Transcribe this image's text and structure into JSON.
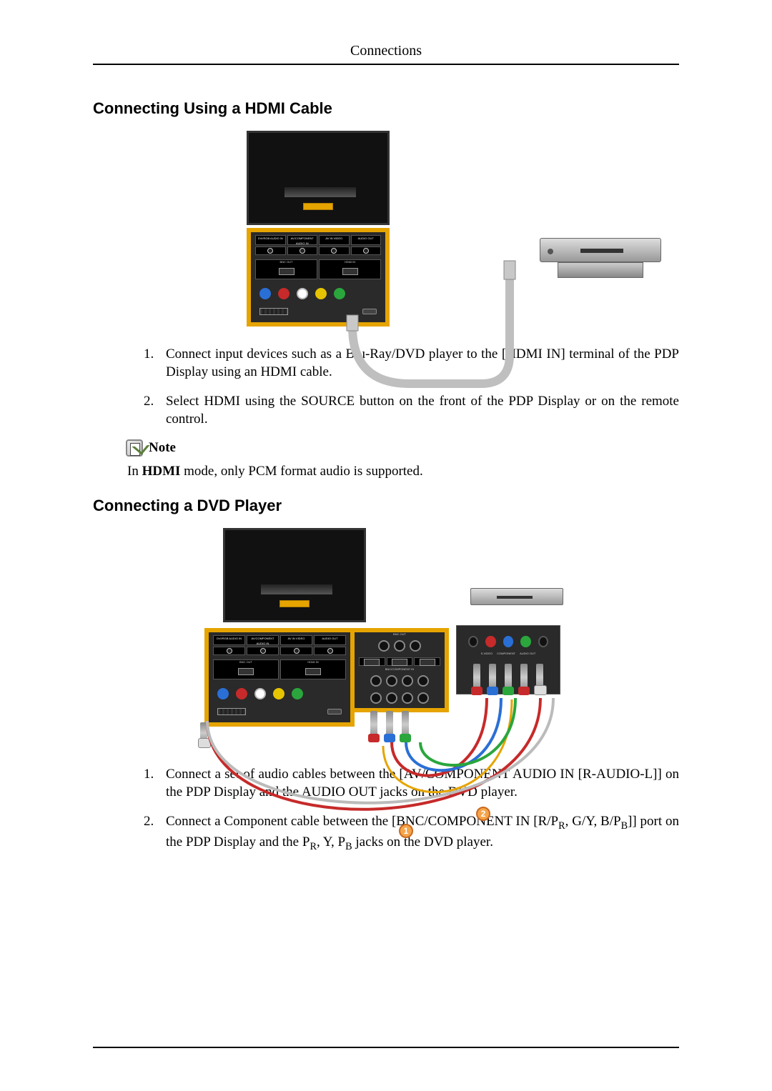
{
  "page_header": "Connections",
  "section1": {
    "heading": "Connecting Using a HDMI Cable",
    "steps": [
      "Connect input devices such as a Blu-Ray/DVD player to the [HDMI IN] terminal of the PDP Display using an HDMI cable.",
      "Select HDMI using the SOURCE button on the front of the PDP Display or on the remote control."
    ],
    "note_label": "Note",
    "note_text_pre": "In ",
    "note_text_bold": "HDMI",
    "note_text_post": " mode, only PCM format audio is supported.",
    "diagram": {
      "panel_toplabels": [
        "DVI/RGB AUDIO IN",
        "AV/COMPONENT AUDIO IN",
        "AV IN VIDEO",
        "AUDIO OUT"
      ],
      "panel_midlabels": [
        "BNC OUT",
        "HDMI IN"
      ],
      "jack_colors": [
        "#2a6fd6",
        "#c62a2a",
        "#ffffff",
        "#e6c400",
        "#2aa63d"
      ],
      "cable_color": "#bfbfbf",
      "player_colors": [
        "#dddddd",
        "#999999"
      ],
      "frame_color": "#e6a400",
      "background": "#2a2a2a"
    }
  },
  "section2": {
    "heading": "Connecting a DVD Player",
    "steps": [
      "Connect a set of audio cables between the [AV/COMPONENT AUDIO IN [R-AUDIO-L]] on the PDP Display and the AUDIO OUT jacks on the DVD player.",
      "Connect a Component cable between the [BNC/COMPONENT IN [R/P|R|, G/Y, B/P|B|]] port on the PDP Display and the P|R|, Y, P|B| jacks on the DVD player."
    ],
    "diagram": {
      "panel_toplabels": [
        "DVI/RGB AUDIO IN",
        "AV/COMPONENT AUDIO IN",
        "AV IN VIDEO",
        "AUDIO OUT"
      ],
      "panel_midlabels": [
        "BNC OUT",
        "HDMI IN"
      ],
      "panel_bnctop": "BNC OUT",
      "panel_bncbot": "BNC/COMPONENT IN",
      "dvd_labels": [
        "S-VIDEO",
        "COMPONENT",
        "AUDIO OUT"
      ],
      "component_plugs": [
        "#c62a2a",
        "#2a6fd6",
        "#2aa63d",
        "#c62a2a",
        "#ffffff"
      ],
      "badge_numbers": [
        "1",
        "2"
      ],
      "cable_colors": {
        "red": "#c62a2a",
        "blue": "#2a6fd6",
        "green": "#2aa63d",
        "white": "#bbbbbb"
      },
      "frame_color": "#e6a400",
      "background": "#2a2a2a"
    }
  }
}
